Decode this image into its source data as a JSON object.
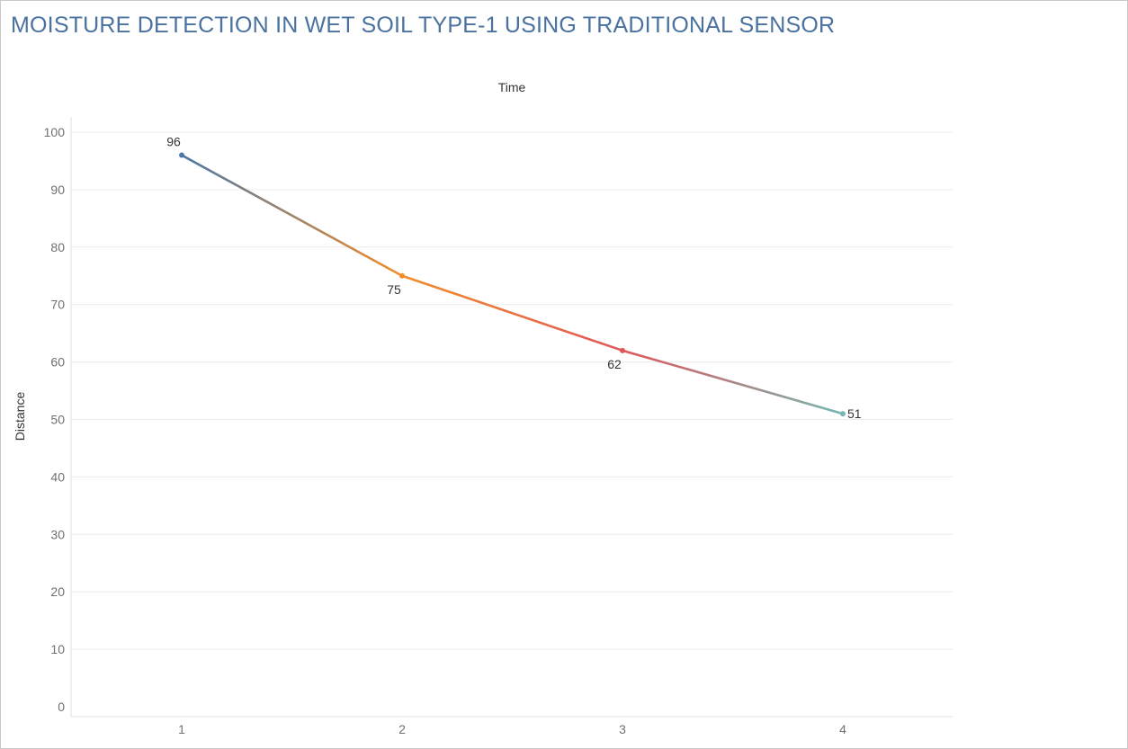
{
  "chart_data": {
    "type": "line",
    "title": "MOISTURE DETECTION IN WET SOIL TYPE-1 USING TRADITIONAL SENSOR",
    "xlabel": "Time",
    "ylabel": "Distance",
    "x": [
      1,
      2,
      3,
      4
    ],
    "xticks": [
      "1",
      "2",
      "3",
      "4"
    ],
    "values": [
      96,
      75,
      62,
      51
    ],
    "labels": [
      "96",
      "75",
      "62",
      "51"
    ],
    "label_positions": [
      "above",
      "below",
      "below",
      "right"
    ],
    "ylim": [
      0,
      100
    ],
    "yticks": [
      "0",
      "10",
      "20",
      "30",
      "40",
      "50",
      "60",
      "70",
      "80",
      "90",
      "100"
    ],
    "point_colors": [
      "#4e79a7",
      "#f28e2b",
      "#e15759",
      "#76b7b2"
    ],
    "grid": true,
    "legend": "none"
  }
}
